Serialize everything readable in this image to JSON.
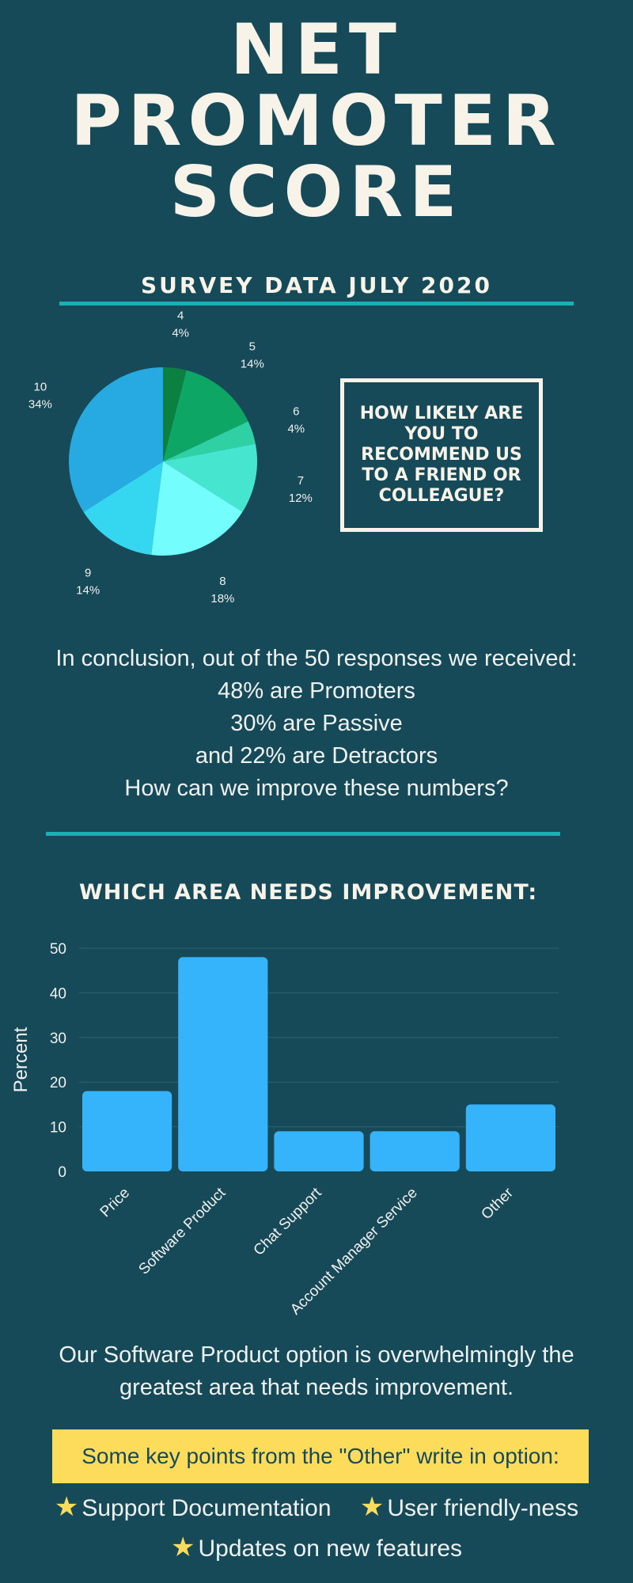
{
  "header": {
    "title_lines": [
      "NET",
      "PROMOTER",
      "SCORE"
    ],
    "subtitle": "SURVEY DATA JULY 2020"
  },
  "question": "HOW LIKELY ARE YOU TO RECOMMEND US TO A FRIEND OR COLLEAGUE?",
  "conclusion": [
    "In conclusion, out of the 50 responses we received:",
    "48% are Promoters",
    "30% are Passive",
    "and 22% are Detractors",
    "How can we improve these numbers?"
  ],
  "improvement_title": "WHICH AREA NEEDS IMPROVEMENT:",
  "summary": "Our Software Product option is overwhelmingly the greatest area that needs improvement.",
  "note": "Some key points from the \"Other\" write in option:",
  "points": [
    "Support Documentation",
    "User friendly-ness",
    "Updates on new features"
  ],
  "colors": {
    "background": "#174a58",
    "accent_rule": "#1bb0b5",
    "bar": "#36b4fb",
    "note_bg": "#fddc5c"
  },
  "chart_data": [
    {
      "type": "pie",
      "categories": [
        "4",
        "5",
        "6",
        "7",
        "8",
        "9",
        "10"
      ],
      "values": [
        4,
        14,
        4,
        12,
        18,
        14,
        34
      ],
      "labels": [
        "4%",
        "14%",
        "4%",
        "12%",
        "18%",
        "14%",
        "34%"
      ],
      "colors": [
        "#0b8040",
        "#0ea664",
        "#2fd0a4",
        "#46e5d0",
        "#74fdfd",
        "#35d6f0",
        "#27a9e1"
      ]
    },
    {
      "type": "bar",
      "categories": [
        "Price",
        "Software Product",
        "Chat Support",
        "Account Manager Service",
        "Other"
      ],
      "values": [
        18,
        48,
        9,
        9,
        15
      ],
      "ylabel": "Percent",
      "ylim": [
        0,
        50
      ],
      "yticks": [
        0,
        10,
        20,
        30,
        40,
        50
      ],
      "grid": true
    }
  ]
}
